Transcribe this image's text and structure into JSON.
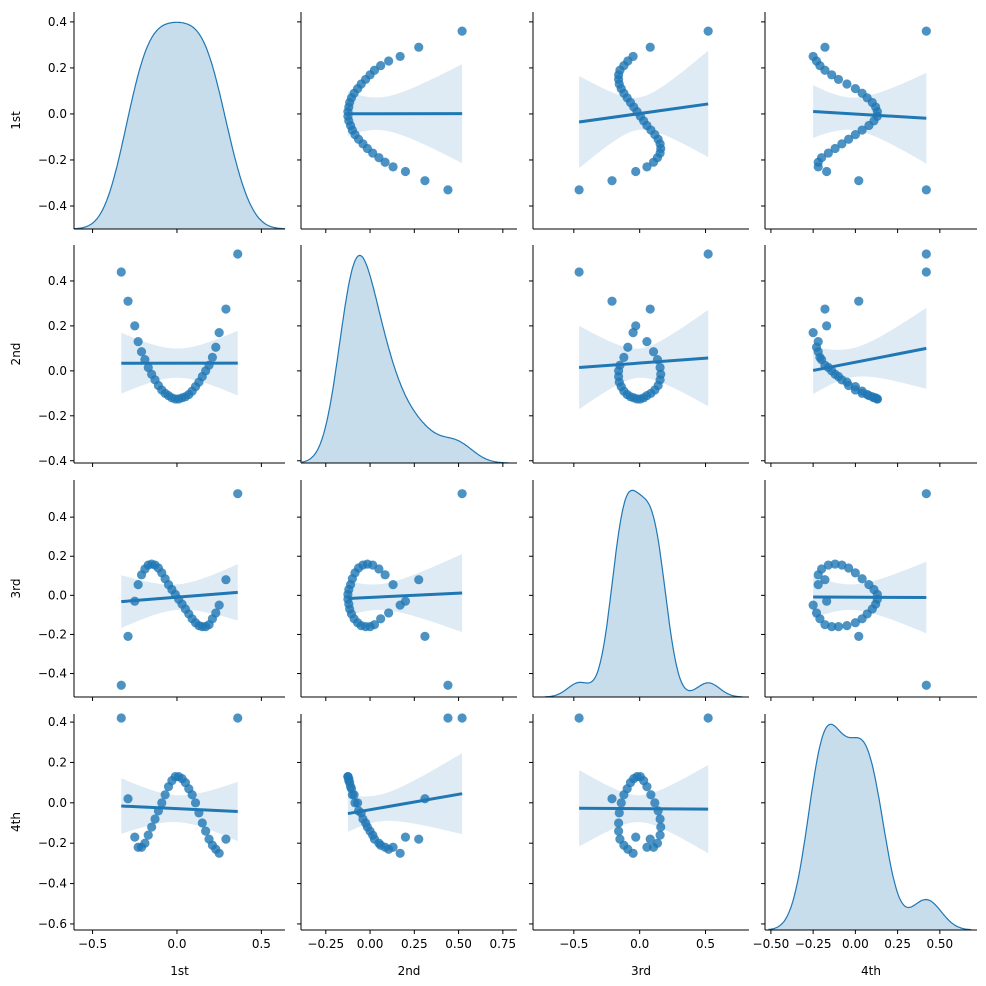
{
  "chart_data": {
    "type": "scatter",
    "kind": "pairplot",
    "title": "",
    "color": "#1f77b4",
    "variables": [
      "1st",
      "2nd",
      "3rd",
      "4th"
    ],
    "values": {
      "1st": [
        -0.33,
        -0.29,
        -0.25,
        -0.23,
        -0.21,
        -0.19,
        -0.17,
        -0.15,
        -0.13,
        -0.11,
        -0.09,
        -0.07,
        -0.05,
        -0.03,
        -0.01,
        0.01,
        0.03,
        0.05,
        0.07,
        0.09,
        0.11,
        0.13,
        0.15,
        0.17,
        0.19,
        0.21,
        0.23,
        0.25,
        0.29,
        0.36
      ],
      "2nd": [
        0.44,
        0.31,
        0.2,
        0.13,
        0.085,
        0.05,
        0.015,
        -0.015,
        -0.04,
        -0.065,
        -0.085,
        -0.1,
        -0.11,
        -0.12,
        -0.125,
        -0.125,
        -0.12,
        -0.115,
        -0.105,
        -0.09,
        -0.07,
        -0.05,
        -0.025,
        0.0,
        0.025,
        0.06,
        0.105,
        0.17,
        0.275,
        0.52
      ],
      "3rd": [
        -0.46,
        -0.21,
        -0.03,
        0.055,
        0.105,
        0.135,
        0.155,
        0.16,
        0.155,
        0.14,
        0.115,
        0.085,
        0.055,
        0.03,
        0.005,
        -0.02,
        -0.045,
        -0.07,
        -0.095,
        -0.12,
        -0.14,
        -0.155,
        -0.16,
        -0.16,
        -0.15,
        -0.12,
        -0.09,
        -0.05,
        0.08,
        0.52
      ],
      "4th": [
        0.42,
        0.02,
        -0.17,
        -0.22,
        -0.22,
        -0.2,
        -0.16,
        -0.12,
        -0.08,
        -0.04,
        0.0,
        0.04,
        0.08,
        0.11,
        0.13,
        0.13,
        0.12,
        0.1,
        0.07,
        0.04,
        0.0,
        -0.05,
        -0.1,
        -0.14,
        -0.18,
        -0.21,
        -0.23,
        -0.25,
        -0.18,
        0.42
      ]
    },
    "diagonal": "kde",
    "off_diagonal": "regression scatter with 95% CI band",
    "axes": {
      "1st": {
        "xlim": [
          -0.61,
          0.64
        ],
        "ylim": [
          -0.5,
          0.443
        ],
        "xticks": [
          -0.5,
          0.0,
          0.5
        ],
        "xticklabels": [
          "−0.5",
          "0.0",
          "0.5"
        ],
        "yticks": [
          -0.4,
          -0.2,
          0.0,
          0.2,
          0.4
        ],
        "yticklabels": [
          "−0.4",
          "−0.2",
          "0.0",
          "0.2",
          "0.4"
        ]
      },
      "2nd": {
        "xlim": [
          -0.39,
          0.83
        ],
        "ylim": [
          -0.41,
          0.56
        ],
        "xticks": [
          -0.25,
          0.0,
          0.25,
          0.5,
          0.75
        ],
        "xticklabels": [
          "−0.25",
          "0.00",
          "0.25",
          "0.50",
          "0.75"
        ],
        "yticks": [
          -0.4,
          -0.2,
          0.0,
          0.2,
          0.4
        ],
        "yticklabels": [
          "−0.4",
          "−0.2",
          "0.0",
          "0.2",
          "0.4"
        ]
      },
      "3rd": {
        "xlim": [
          -0.81,
          0.83
        ],
        "ylim": [
          -0.52,
          0.59
        ],
        "xticks": [
          -0.5,
          0.0,
          0.5
        ],
        "xticklabels": [
          "−0.5",
          "0.0",
          "0.5"
        ],
        "yticks": [
          -0.4,
          -0.2,
          0.0,
          0.2,
          0.4
        ],
        "yticklabels": [
          "−0.4",
          "−0.2",
          "0.0",
          "0.2",
          "0.4"
        ]
      },
      "4th": {
        "xlim": [
          -0.535,
          0.72
        ],
        "ylim": [
          -0.63,
          0.44
        ],
        "xticks": [
          -0.5,
          -0.25,
          0.0,
          0.25,
          0.5
        ],
        "xticklabels": [
          "−0.50",
          "−0.25",
          "0.00",
          "0.25",
          "0.50"
        ],
        "yticks": [
          -0.6,
          -0.4,
          -0.2,
          0.0,
          0.2,
          0.4
        ],
        "yticklabels": [
          "−0.6",
          "−0.4",
          "−0.2",
          "0.0",
          "0.2",
          "0.4"
        ]
      }
    },
    "grid": false,
    "legend": "none"
  }
}
